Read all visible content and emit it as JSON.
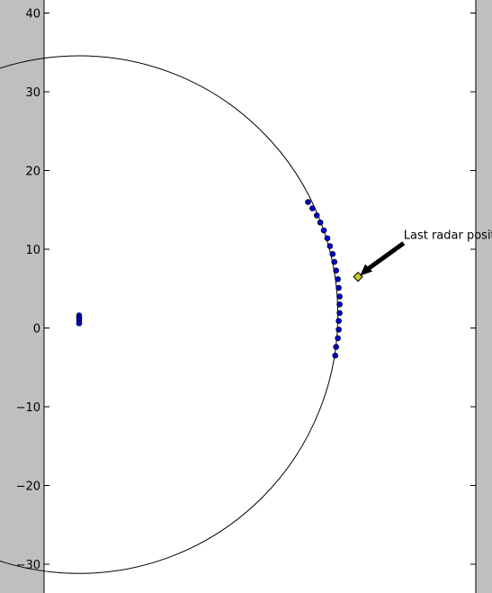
{
  "chart_data": {
    "type": "scatter",
    "title": "",
    "xlabel": "",
    "ylabel": "",
    "ylim": [
      -34,
      41
    ],
    "xlim": [
      -4.5,
      50
    ],
    "grid": false,
    "yticks": [
      40,
      30,
      20,
      10,
      0,
      -10,
      -20,
      -30
    ],
    "ytick_labels": [
      "40",
      "30",
      "20",
      "10",
      "0",
      "−10",
      "−20",
      "−30"
    ],
    "circle": {
      "center": [
        0,
        1.7
      ],
      "radius": 29.5,
      "color": "#000000"
    },
    "series": [
      {
        "marker": "circle",
        "color": "#0000cc",
        "points": [
          [
            26.1,
            16.0
          ],
          [
            26.6,
            15.2
          ],
          [
            27.1,
            14.3
          ],
          [
            27.5,
            13.4
          ],
          [
            27.9,
            12.4
          ],
          [
            28.3,
            11.4
          ],
          [
            28.6,
            10.4
          ],
          [
            28.9,
            9.4
          ],
          [
            29.1,
            8.4
          ],
          [
            29.3,
            7.3
          ],
          [
            29.5,
            6.2
          ],
          [
            29.6,
            5.1
          ],
          [
            29.7,
            4.0
          ],
          [
            29.7,
            3.0
          ],
          [
            29.7,
            1.9
          ],
          [
            29.6,
            0.9
          ],
          [
            29.6,
            -0.2
          ],
          [
            29.5,
            -1.3
          ],
          [
            29.3,
            -2.4
          ],
          [
            29.2,
            -3.5
          ],
          [
            0.0,
            1.6
          ],
          [
            0.0,
            1.3
          ],
          [
            0.0,
            1.0
          ],
          [
            0.0,
            0.6
          ]
        ]
      }
    ],
    "last_position": {
      "x": 31.8,
      "y": 6.5,
      "color": "#cccc22",
      "marker": "diamond"
    },
    "annotation": {
      "text": "Last radar position",
      "text_x": 37.0,
      "text_y": 11.0
    }
  }
}
